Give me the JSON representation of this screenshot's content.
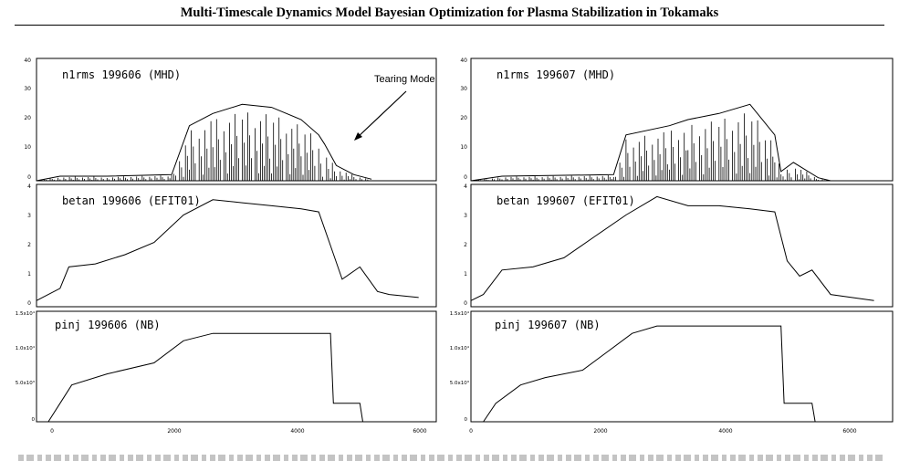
{
  "header": {
    "title": "Multi-Timescale Dynamics Model Bayesian Optimization for Plasma Stabilization in Tokamaks"
  },
  "figure": {
    "annotation": "Tearing Mode",
    "x_ticks": [
      "0",
      "2000",
      "4000",
      "6000"
    ],
    "columns": [
      {
        "panels": [
          {
            "label": "n1rms  199606 (MHD)",
            "y_ticks": [
              "0",
              "10",
              "20",
              "30",
              "40"
            ]
          },
          {
            "label": "betan  199606 (EFIT01)",
            "y_ticks": [
              "0",
              "1",
              "2",
              "3",
              "4"
            ]
          },
          {
            "label": "pinj  199606 (NB)",
            "y_ticks": [
              "0",
              "5.0x10³",
              "1.0x10⁴",
              "1.5x10⁴"
            ]
          }
        ]
      },
      {
        "panels": [
          {
            "label": "n1rms  199607 (MHD)",
            "y_ticks": [
              "0",
              "10",
              "20",
              "30",
              "40"
            ]
          },
          {
            "label": "betan  199607 (EFIT01)",
            "y_ticks": [
              "0",
              "1",
              "2",
              "3",
              "4"
            ]
          },
          {
            "label": "pinj  199607 (NB)",
            "y_ticks": [
              "0",
              "5.0x10³",
              "1.0x10⁴",
              "1.5x10⁴"
            ]
          }
        ]
      }
    ]
  },
  "chart_data": [
    {
      "type": "line",
      "title": "n1rms  199606 (MHD)",
      "xlim": [
        0,
        6800
      ],
      "ylim": [
        0,
        40
      ],
      "x": [
        0,
        400,
        1200,
        2300,
        2600,
        3000,
        3500,
        4000,
        4500,
        4800,
        4900,
        5100,
        5400,
        5700
      ],
      "values": [
        0,
        1.5,
        1.5,
        2,
        18,
        22,
        25,
        24,
        20,
        15,
        12,
        5,
        2,
        0.5
      ],
      "annotation": "Tearing Mode"
    },
    {
      "type": "line",
      "title": "betan  199606 (EFIT01)",
      "xlim": [
        0,
        6800
      ],
      "ylim": [
        0,
        4
      ],
      "x": [
        0,
        100,
        400,
        550,
        1000,
        1500,
        2000,
        2500,
        3000,
        3500,
        4000,
        4500,
        4800,
        5000,
        5200,
        5500,
        5800,
        6000,
        6500
      ],
      "values": [
        0.2,
        0.3,
        0.6,
        1.3,
        1.4,
        1.7,
        2.1,
        3.0,
        3.5,
        3.4,
        3.3,
        3.2,
        3.1,
        2.0,
        0.9,
        1.3,
        0.5,
        0.4,
        0.3
      ]
    },
    {
      "type": "line",
      "title": "pinj  199606 (NB)",
      "xlim": [
        0,
        6800
      ],
      "ylim": [
        0,
        15000
      ],
      "x": [
        0,
        200,
        400,
        600,
        1200,
        2000,
        2500,
        3000,
        3500,
        4000,
        4500,
        5000,
        5050,
        5500,
        5550,
        6800
      ],
      "values": [
        0,
        0,
        2500,
        5000,
        6500,
        8000,
        11000,
        12000,
        12000,
        12000,
        12000,
        12000,
        2500,
        2500,
        0,
        0
      ]
    },
    {
      "type": "line",
      "title": "n1rms  199607 (MHD)",
      "xlim": [
        0,
        6800
      ],
      "ylim": [
        0,
        40
      ],
      "x": [
        0,
        500,
        2300,
        2500,
        3200,
        3500,
        4000,
        4500,
        4900,
        5000,
        5200,
        5600,
        5800
      ],
      "values": [
        0,
        1.5,
        2,
        15,
        18,
        20,
        22,
        25,
        15,
        3,
        6,
        1,
        0
      ]
    },
    {
      "type": "line",
      "title": "betan  199607 (EFIT01)",
      "xlim": [
        0,
        6800
      ],
      "ylim": [
        0,
        4
      ],
      "x": [
        0,
        200,
        500,
        1000,
        1500,
        2000,
        2500,
        3000,
        3500,
        4000,
        4500,
        4900,
        5100,
        5300,
        5500,
        5800,
        6500
      ],
      "values": [
        0.2,
        0.4,
        1.2,
        1.3,
        1.6,
        2.3,
        3.0,
        3.6,
        3.3,
        3.3,
        3.2,
        3.1,
        1.5,
        1.0,
        1.2,
        0.4,
        0.2
      ]
    },
    {
      "type": "line",
      "title": "pinj  199607 (NB)",
      "xlim": [
        0,
        6800
      ],
      "ylim": [
        0,
        15000
      ],
      "x": [
        0,
        200,
        400,
        800,
        1200,
        1800,
        2200,
        2600,
        3000,
        3500,
        4000,
        4500,
        5000,
        5050,
        5500,
        5550,
        6800
      ],
      "values": [
        0,
        0,
        2500,
        5000,
        6000,
        7000,
        9500,
        12000,
        13000,
        13000,
        13000,
        13000,
        13000,
        2500,
        2500,
        0,
        0
      ]
    }
  ]
}
